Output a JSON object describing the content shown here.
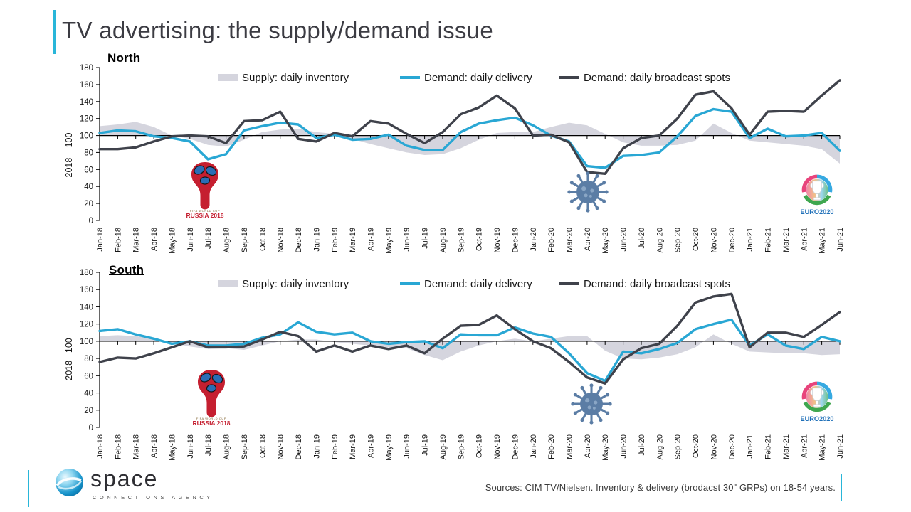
{
  "title": "TV advertising: the supply/demand issue",
  "legend": [
    "Supply: daily inventory",
    "Demand: daily delivery",
    "Demand: daily broadcast spots"
  ],
  "colors": {
    "supply": "#d5d5de",
    "delivery": "#29a7d4",
    "spots": "#3f424b",
    "accent": "#29b6d9",
    "virus": "#5b7da5",
    "worldcup_red": "#c51f30",
    "worldcup_blue": "#2a6db5",
    "euro_text_blue": "#1e6fb8"
  },
  "icons": {
    "worldcup": {
      "line1": "FIFA WORLD CUP",
      "line2": "RUSSIA 2018"
    },
    "euro": {
      "label": "EURO2020"
    }
  },
  "footer": {
    "logo_text": "space",
    "logo_subtext": "CONNECTIONS AGENCY",
    "sources": "Sources: CIM TV/Nielsen. Inventory & delivery (brodacst 30\" GRPs) on 18-54 years."
  },
  "chart_data": [
    {
      "type": "area+line",
      "title": "North",
      "ylabel": "2018 = 100",
      "ylim": [
        0,
        180
      ],
      "yticks": [
        0,
        20,
        40,
        60,
        80,
        100,
        120,
        140,
        160,
        180
      ],
      "baseline": 100,
      "grid": false,
      "legend_position": "top",
      "categories": [
        "Jan-18",
        "Feb-18",
        "Mar-18",
        "Apr-18",
        "May-18",
        "Jun-18",
        "Jul-18",
        "Aug-18",
        "Sep-18",
        "Oct-18",
        "Nov-18",
        "Dec-18",
        "Jan-19",
        "Feb-19",
        "Mar-19",
        "Apr-19",
        "May-19",
        "Jun-19",
        "Jul-19",
        "Aug-19",
        "Sep-19",
        "Oct-19",
        "Nov-19",
        "Dec-19",
        "Jan-20",
        "Feb-20",
        "Mar-20",
        "Apr-20",
        "May-20",
        "Jun-20",
        "Jul-20",
        "Aug-20",
        "Sep-20",
        "Oct-20",
        "Nov-20",
        "Dec-20",
        "Jan-21",
        "Feb-21",
        "Mar-21",
        "Apr-21",
        "May-21",
        "Jun-21"
      ],
      "series": [
        {
          "name": "Supply: daily inventory",
          "kind": "area",
          "values": [
            111,
            113,
            116,
            110,
            100,
            96,
            89,
            87,
            95,
            104,
            107,
            108,
            104,
            102,
            96,
            90,
            85,
            80,
            77,
            78,
            85,
            95,
            103,
            104,
            104,
            110,
            115,
            112,
            102,
            92,
            88,
            88,
            89,
            94,
            114,
            103,
            94,
            92,
            90,
            88,
            84,
            67
          ]
        },
        {
          "name": "Demand: daily delivery",
          "kind": "line",
          "values": [
            103,
            106,
            105,
            99,
            97,
            93,
            72,
            78,
            106,
            111,
            115,
            113,
            97,
            101,
            95,
            96,
            101,
            88,
            83,
            83,
            104,
            114,
            118,
            121,
            112,
            100,
            93,
            64,
            62,
            76,
            77,
            80,
            99,
            123,
            131,
            128,
            97,
            108,
            99,
            100,
            103,
            82
          ]
        },
        {
          "name": "Demand: daily broadcast spots",
          "kind": "line",
          "values": [
            84,
            84,
            86,
            93,
            99,
            100,
            99,
            91,
            117,
            118,
            128,
            96,
            93,
            103,
            99,
            117,
            114,
            102,
            91,
            104,
            125,
            133,
            147,
            132,
            100,
            101,
            92,
            57,
            55,
            85,
            97,
            100,
            120,
            148,
            152,
            132,
            101,
            128,
            129,
            128,
            147,
            165
          ]
        }
      ],
      "annotations": [
        "fifa-world-cup-2018-logo",
        "coronavirus-icon",
        "euro2020-logo"
      ]
    },
    {
      "type": "area+line",
      "title": "South",
      "ylabel": "2018= 100",
      "ylim": [
        0,
        180
      ],
      "yticks": [
        0,
        20,
        40,
        60,
        80,
        100,
        120,
        140,
        160,
        180
      ],
      "baseline": 100,
      "grid": false,
      "legend_position": "top",
      "categories": [
        "Jan-18",
        "Feb-18",
        "Mar-18",
        "Apr-18",
        "May-18",
        "Jun-18",
        "Jul-18",
        "Aug-18",
        "Sep-18",
        "Oct-18",
        "Nov-18",
        "Dec-18",
        "Jan-19",
        "Feb-19",
        "Mar-19",
        "Apr-19",
        "May-19",
        "Jun-19",
        "Jul-19",
        "Aug-19",
        "Sep-19",
        "Oct-19",
        "Nov-19",
        "Dec-19",
        "Jan-20",
        "Feb-20",
        "Mar-20",
        "Apr-20",
        "May-20",
        "Jun-20",
        "Jul-20",
        "Aug-20",
        "Sep-20",
        "Oct-20",
        "Nov-20",
        "Dec-20",
        "Jan-21",
        "Feb-21",
        "Mar-21",
        "Apr-21",
        "May-21",
        "Jun-21"
      ],
      "series": [
        {
          "name": "Supply: daily inventory",
          "kind": "area",
          "values": [
            106,
            107,
            106,
            103,
            98,
            94,
            91,
            92,
            90,
            95,
            100,
            102,
            102,
            99,
            97,
            95,
            93,
            92,
            84,
            78,
            88,
            95,
            100,
            103,
            100,
            103,
            106,
            106,
            89,
            80,
            79,
            81,
            85,
            93,
            108,
            97,
            88,
            87,
            86,
            86,
            84,
            85
          ]
        },
        {
          "name": "Demand: daily delivery",
          "kind": "line",
          "values": [
            112,
            114,
            108,
            103,
            97,
            100,
            95,
            95,
            97,
            104,
            108,
            122,
            111,
            108,
            110,
            100,
            97,
            99,
            100,
            92,
            108,
            107,
            107,
            116,
            109,
            105,
            86,
            63,
            54,
            88,
            86,
            91,
            98,
            114,
            120,
            125,
            95,
            108,
            95,
            91,
            105,
            100
          ]
        },
        {
          "name": "Demand: daily broadcast spots",
          "kind": "line",
          "values": [
            76,
            81,
            80,
            86,
            93,
            100,
            93,
            93,
            94,
            102,
            111,
            106,
            88,
            95,
            88,
            95,
            91,
            95,
            86,
            103,
            118,
            119,
            130,
            114,
            100,
            92,
            76,
            58,
            51,
            79,
            92,
            97,
            118,
            145,
            152,
            155,
            93,
            110,
            110,
            105,
            119,
            134
          ]
        }
      ],
      "annotations": [
        "fifa-world-cup-2018-logo",
        "coronavirus-icon",
        "euro2020-logo"
      ]
    }
  ]
}
